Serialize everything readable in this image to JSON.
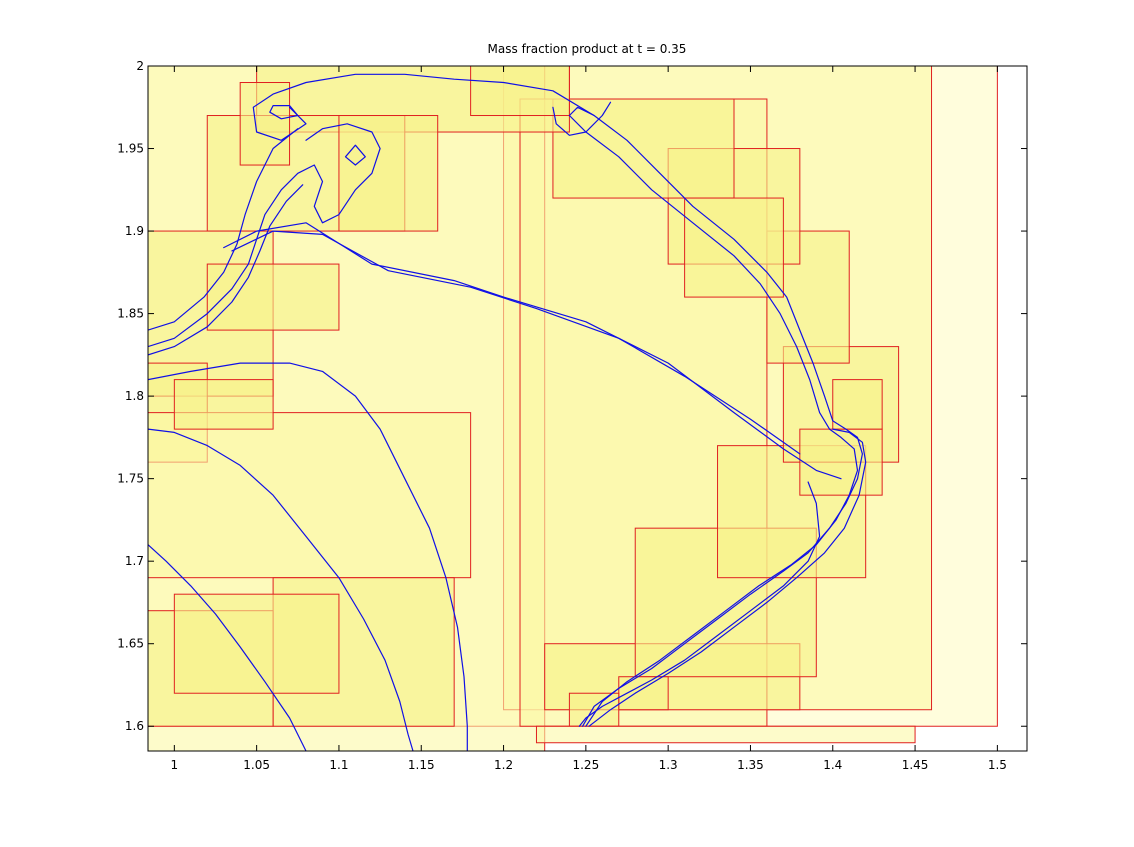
{
  "chart_data": {
    "type": "line",
    "title": "Mass fraction product at t = 0.35",
    "xlabel": "",
    "ylabel": "",
    "xlim": [
      0.984,
      1.518
    ],
    "ylim": [
      1.585,
      2.0
    ],
    "xticks": [
      1,
      1.05,
      1.1,
      1.15,
      1.2,
      1.25,
      1.3,
      1.35,
      1.4,
      1.45,
      1.5
    ],
    "xtick_labels": [
      "1",
      "1.05",
      "1.1",
      "1.15",
      "1.2",
      "1.25",
      "1.3",
      "1.35",
      "1.4",
      "1.45",
      "1.5"
    ],
    "yticks": [
      1.6,
      1.65,
      1.7,
      1.75,
      1.8,
      1.85,
      1.9,
      1.95,
      2
    ],
    "ytick_labels": [
      "1.6",
      "1.65",
      "1.7",
      "1.75",
      "1.8",
      "1.85",
      "1.9",
      "1.95",
      "2"
    ],
    "grid": false,
    "legend": "none",
    "colors": {
      "contour": "#1010e6",
      "box_edge": "#e02020",
      "fill_coarse": "#fffde0",
      "fill_level1": "#fffcc4",
      "fill_level2": "#fbf9a6",
      "fill_level3": "#f6f28a"
    },
    "amr_boxes": [
      {
        "level": 1,
        "x0": 0.984,
        "x1": 1.5,
        "y0": 1.6,
        "y1": 2.0
      },
      {
        "level": 2,
        "x0": 1.2,
        "x1": 1.46,
        "y0": 1.61,
        "y1": 2.0
      },
      {
        "level": 2,
        "x0": 0.984,
        "x1": 1.225,
        "y0": 1.585,
        "y1": 2.0
      },
      {
        "level": 2,
        "x0": 1.21,
        "x1": 1.36,
        "y0": 1.6,
        "y1": 1.98
      },
      {
        "level": 3,
        "x0": 1.225,
        "x1": 1.38,
        "y0": 1.61,
        "y1": 1.65
      },
      {
        "level": 3,
        "x0": 1.28,
        "x1": 1.39,
        "y0": 1.63,
        "y1": 1.72
      },
      {
        "level": 3,
        "x0": 1.33,
        "x1": 1.42,
        "y0": 1.69,
        "y1": 1.77
      },
      {
        "level": 3,
        "x0": 1.37,
        "x1": 1.44,
        "y0": 1.76,
        "y1": 1.83
      },
      {
        "level": 3,
        "x0": 1.36,
        "x1": 1.41,
        "y0": 1.82,
        "y1": 1.9
      },
      {
        "level": 3,
        "x0": 1.3,
        "x1": 1.38,
        "y0": 1.88,
        "y1": 1.95
      },
      {
        "level": 3,
        "x0": 1.23,
        "x1": 1.34,
        "y0": 1.92,
        "y1": 1.98
      },
      {
        "level": 3,
        "x0": 1.05,
        "x1": 1.24,
        "y0": 1.96,
        "y1": 2.0
      },
      {
        "level": 3,
        "x0": 1.02,
        "x1": 1.14,
        "y0": 1.9,
        "y1": 1.97
      },
      {
        "level": 3,
        "x0": 0.984,
        "x1": 1.06,
        "y0": 1.8,
        "y1": 1.9
      },
      {
        "level": 3,
        "x0": 1.02,
        "x1": 1.1,
        "y0": 1.84,
        "y1": 1.88
      },
      {
        "level": 3,
        "x0": 0.984,
        "x1": 1.02,
        "y0": 1.76,
        "y1": 1.82
      },
      {
        "level": 2,
        "x0": 0.984,
        "x1": 1.18,
        "y0": 1.69,
        "y1": 1.79
      },
      {
        "level": 3,
        "x0": 1.06,
        "x1": 1.17,
        "y0": 1.6,
        "y1": 1.69
      },
      {
        "level": 3,
        "x0": 0.984,
        "x1": 1.06,
        "y0": 1.6,
        "y1": 1.67
      },
      {
        "level": 3,
        "x0": 1.0,
        "x1": 1.1,
        "y0": 1.62,
        "y1": 1.68
      },
      {
        "level": 3,
        "x0": 1.27,
        "x1": 1.3,
        "y0": 1.61,
        "y1": 1.63
      },
      {
        "level": 3,
        "x0": 1.24,
        "x1": 1.27,
        "y0": 1.6,
        "y1": 1.62
      },
      {
        "level": 2,
        "x0": 1.22,
        "x1": 1.45,
        "y0": 1.59,
        "y1": 1.6
      },
      {
        "level": 3,
        "x0": 1.38,
        "x1": 1.43,
        "y0": 1.74,
        "y1": 1.78
      },
      {
        "level": 3,
        "x0": 1.4,
        "x1": 1.43,
        "y0": 1.78,
        "y1": 1.81
      },
      {
        "level": 3,
        "x0": 1.04,
        "x1": 1.07,
        "y0": 1.94,
        "y1": 1.99
      },
      {
        "level": 3,
        "x0": 1.1,
        "x1": 1.16,
        "y0": 1.9,
        "y1": 1.97
      },
      {
        "level": 3,
        "x0": 1.18,
        "x1": 1.24,
        "y0": 1.97,
        "y1": 2.0
      },
      {
        "level": 3,
        "x0": 1.31,
        "x1": 1.37,
        "y0": 1.86,
        "y1": 1.92
      },
      {
        "level": 3,
        "x0": 1.0,
        "x1": 1.06,
        "y0": 1.78,
        "y1": 1.81
      }
    ],
    "series": [
      {
        "values": [
          [
            1.248,
            1.6
          ],
          [
            1.255,
            1.612
          ],
          [
            1.27,
            1.623
          ],
          [
            1.29,
            1.635
          ],
          [
            1.31,
            1.65
          ],
          [
            1.33,
            1.665
          ],
          [
            1.35,
            1.68
          ],
          [
            1.37,
            1.694
          ],
          [
            1.385,
            1.705
          ],
          [
            1.398,
            1.72
          ],
          [
            1.408,
            1.735
          ],
          [
            1.415,
            1.75
          ],
          [
            1.418,
            1.765
          ],
          [
            1.415,
            1.775
          ],
          [
            1.408,
            1.78
          ],
          [
            1.4,
            1.785
          ],
          [
            1.395,
            1.8
          ],
          [
            1.388,
            1.82
          ],
          [
            1.38,
            1.84
          ],
          [
            1.372,
            1.86
          ],
          [
            1.36,
            1.875
          ],
          [
            1.34,
            1.895
          ],
          [
            1.315,
            1.915
          ],
          [
            1.295,
            1.935
          ],
          [
            1.275,
            1.955
          ],
          [
            1.255,
            1.97
          ],
          [
            1.23,
            1.985
          ],
          [
            1.2,
            1.99
          ],
          [
            1.17,
            1.992
          ],
          [
            1.14,
            1.995
          ],
          [
            1.11,
            1.995
          ],
          [
            1.08,
            1.99
          ],
          [
            1.06,
            1.983
          ],
          [
            1.048,
            1.975
          ],
          [
            1.05,
            1.96
          ],
          [
            1.065,
            1.955
          ],
          [
            1.08,
            1.965
          ],
          [
            1.07,
            1.975
          ]
        ]
      },
      {
        "values": [
          [
            1.25,
            1.6
          ],
          [
            1.26,
            1.615
          ],
          [
            1.275,
            1.627
          ],
          [
            1.295,
            1.64
          ],
          [
            1.315,
            1.655
          ],
          [
            1.335,
            1.67
          ],
          [
            1.355,
            1.685
          ],
          [
            1.375,
            1.698
          ],
          [
            1.39,
            1.71
          ],
          [
            1.402,
            1.725
          ],
          [
            1.41,
            1.74
          ],
          [
            1.415,
            1.755
          ],
          [
            1.413,
            1.768
          ],
          [
            1.405,
            1.775
          ],
          [
            1.398,
            1.78
          ],
          [
            1.392,
            1.79
          ],
          [
            1.386,
            1.81
          ],
          [
            1.378,
            1.83
          ],
          [
            1.368,
            1.85
          ],
          [
            1.356,
            1.868
          ],
          [
            1.34,
            1.885
          ],
          [
            1.315,
            1.905
          ],
          [
            1.29,
            1.925
          ],
          [
            1.27,
            1.945
          ],
          [
            1.25,
            1.96
          ],
          [
            1.24,
            1.97
          ],
          [
            1.245,
            1.975
          ],
          [
            1.255,
            1.97
          ]
        ]
      },
      {
        "values": [
          [
            1.252,
            1.6
          ],
          [
            1.265,
            1.61
          ],
          [
            1.28,
            1.62
          ],
          [
            1.3,
            1.632
          ],
          [
            1.32,
            1.645
          ],
          [
            1.34,
            1.66
          ],
          [
            1.36,
            1.675
          ],
          [
            1.378,
            1.69
          ],
          [
            1.395,
            1.705
          ],
          [
            1.407,
            1.72
          ],
          [
            1.416,
            1.74
          ],
          [
            1.42,
            1.76
          ],
          [
            1.418,
            1.772
          ],
          [
            1.41,
            1.778
          ],
          [
            1.4,
            1.78
          ]
        ]
      },
      {
        "values": [
          [
            1.246,
            1.6
          ],
          [
            1.25,
            1.605
          ],
          [
            1.26,
            1.612
          ],
          [
            1.275,
            1.62
          ],
          [
            1.29,
            1.628
          ],
          [
            1.31,
            1.64
          ],
          [
            1.33,
            1.655
          ],
          [
            1.35,
            1.67
          ],
          [
            1.37,
            1.685
          ],
          [
            1.385,
            1.7
          ],
          [
            1.392,
            1.715
          ],
          [
            1.39,
            1.735
          ],
          [
            1.385,
            1.748
          ]
        ]
      },
      {
        "values": [
          [
            0.984,
            1.83
          ],
          [
            1.0,
            1.835
          ],
          [
            1.02,
            1.85
          ],
          [
            1.035,
            1.865
          ],
          [
            1.045,
            1.88
          ],
          [
            1.05,
            1.895
          ],
          [
            1.055,
            1.91
          ],
          [
            1.065,
            1.925
          ],
          [
            1.075,
            1.935
          ],
          [
            1.085,
            1.94
          ],
          [
            1.09,
            1.93
          ],
          [
            1.085,
            1.915
          ],
          [
            1.09,
            1.905
          ],
          [
            1.1,
            1.91
          ],
          [
            1.11,
            1.925
          ],
          [
            1.12,
            1.935
          ],
          [
            1.125,
            1.95
          ],
          [
            1.12,
            1.96
          ],
          [
            1.105,
            1.965
          ],
          [
            1.09,
            1.962
          ],
          [
            1.08,
            1.955
          ]
        ]
      },
      {
        "values": [
          [
            0.984,
            1.825
          ],
          [
            1.0,
            1.83
          ],
          [
            1.02,
            1.842
          ],
          [
            1.035,
            1.857
          ],
          [
            1.045,
            1.872
          ],
          [
            1.052,
            1.888
          ],
          [
            1.058,
            1.903
          ],
          [
            1.068,
            1.918
          ],
          [
            1.078,
            1.928
          ]
        ]
      },
      {
        "values": [
          [
            0.984,
            1.84
          ],
          [
            1.0,
            1.845
          ],
          [
            1.018,
            1.86
          ],
          [
            1.03,
            1.875
          ],
          [
            1.038,
            1.892
          ],
          [
            1.043,
            1.91
          ],
          [
            1.05,
            1.93
          ],
          [
            1.06,
            1.95
          ],
          [
            1.075,
            1.962
          ]
        ]
      },
      {
        "values": [
          [
            1.104,
            1.945
          ],
          [
            1.11,
            1.94
          ],
          [
            1.116,
            1.945
          ],
          [
            1.11,
            1.952
          ],
          [
            1.104,
            1.945
          ]
        ]
      },
      {
        "values": [
          [
            1.058,
            1.972
          ],
          [
            1.065,
            1.968
          ],
          [
            1.075,
            1.97
          ],
          [
            1.07,
            1.976
          ],
          [
            1.06,
            1.976
          ],
          [
            1.058,
            1.972
          ]
        ]
      },
      {
        "values": [
          [
            1.23,
            1.975
          ],
          [
            1.232,
            1.965
          ],
          [
            1.24,
            1.958
          ],
          [
            1.25,
            1.96
          ],
          [
            1.26,
            1.97
          ],
          [
            1.265,
            1.978
          ]
        ]
      },
      {
        "values": [
          [
            1.03,
            1.89
          ],
          [
            1.05,
            1.9
          ],
          [
            1.08,
            1.905
          ],
          [
            1.12,
            1.88
          ],
          [
            1.17,
            1.87
          ],
          [
            1.2,
            1.86
          ],
          [
            1.25,
            1.845
          ],
          [
            1.3,
            1.82
          ],
          [
            1.34,
            1.79
          ],
          [
            1.37,
            1.768
          ],
          [
            1.39,
            1.755
          ],
          [
            1.405,
            1.75
          ]
        ]
      },
      {
        "values": [
          [
            1.035,
            1.888
          ],
          [
            1.06,
            1.9
          ],
          [
            1.09,
            1.898
          ],
          [
            1.13,
            1.876
          ],
          [
            1.18,
            1.866
          ],
          [
            1.22,
            1.853
          ],
          [
            1.27,
            1.835
          ],
          [
            1.31,
            1.812
          ],
          [
            1.35,
            1.786
          ],
          [
            1.38,
            1.765
          ]
        ]
      },
      {
        "values": [
          [
            0.984,
            1.81
          ],
          [
            1.01,
            1.815
          ],
          [
            1.04,
            1.82
          ],
          [
            1.07,
            1.82
          ],
          [
            1.09,
            1.815
          ],
          [
            1.11,
            1.8
          ],
          [
            1.125,
            1.78
          ],
          [
            1.14,
            1.75
          ],
          [
            1.155,
            1.72
          ],
          [
            1.165,
            1.69
          ],
          [
            1.172,
            1.66
          ],
          [
            1.176,
            1.63
          ],
          [
            1.178,
            1.6
          ],
          [
            1.178,
            1.585
          ]
        ]
      },
      {
        "values": [
          [
            0.984,
            1.78
          ],
          [
            1.0,
            1.778
          ],
          [
            1.02,
            1.77
          ],
          [
            1.04,
            1.758
          ],
          [
            1.06,
            1.74
          ],
          [
            1.08,
            1.715
          ],
          [
            1.1,
            1.69
          ],
          [
            1.115,
            1.665
          ],
          [
            1.128,
            1.64
          ],
          [
            1.137,
            1.615
          ],
          [
            1.142,
            1.595
          ],
          [
            1.145,
            1.585
          ]
        ]
      },
      {
        "values": [
          [
            0.984,
            1.71
          ],
          [
            0.995,
            1.7
          ],
          [
            1.01,
            1.685
          ],
          [
            1.025,
            1.668
          ],
          [
            1.04,
            1.648
          ],
          [
            1.055,
            1.627
          ],
          [
            1.07,
            1.605
          ],
          [
            1.08,
            1.585
          ]
        ]
      }
    ]
  }
}
